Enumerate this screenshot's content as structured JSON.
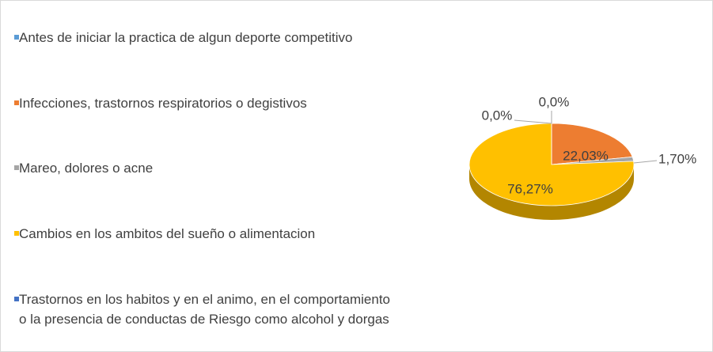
{
  "chart_data": {
    "type": "pie",
    "categories": [
      "Antes de iniciar la practica de algun deporte competitivo",
      "Infecciones, trastornos respiratorios o degistivos",
      "Mareo, dolores o acne",
      "Cambios en los ambitos del sueño o alimentacion",
      "Trastornos en los habitos y en el animo,  en el comportamiento o la presencia de conductas de Riesgo como alcohol y dorgas"
    ],
    "values": [
      0,
      22.03,
      1.7,
      76.27,
      0
    ],
    "value_labels": [
      "0,0%",
      "22,03%",
      "1,70%",
      "76,27%",
      "0,0%"
    ],
    "colors": [
      "#5b9bd5",
      "#ed7d31",
      "#a5a5a5",
      "#ffc000",
      "#4472c4"
    ],
    "legend": "left"
  }
}
